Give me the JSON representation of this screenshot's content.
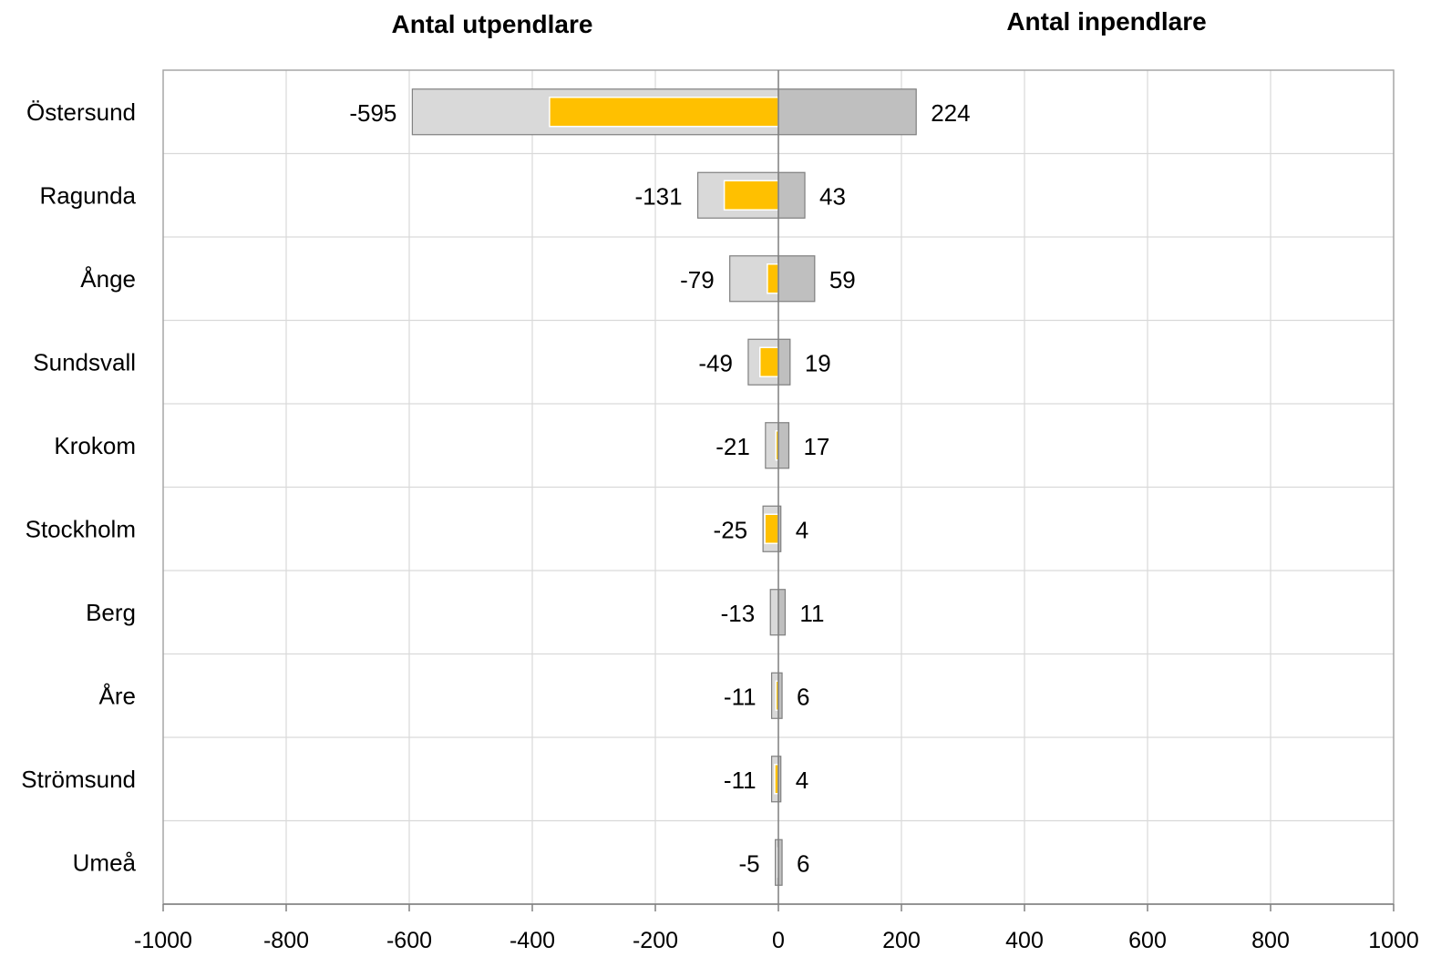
{
  "chart_data": {
    "type": "bar",
    "orientation": "horizontal",
    "headers": {
      "left": "Antal utpendlare",
      "right": "Antal inpendlare"
    },
    "categories": [
      "Östersund",
      "Ragunda",
      "Ånge",
      "Sundsvall",
      "Krokom",
      "Stockholm",
      "Berg",
      "Åre",
      "Strömsund",
      "Umeå"
    ],
    "series": [
      {
        "values": [
          -595,
          -131,
          -79,
          -49,
          -21,
          -25,
          -13,
          -11,
          -11,
          -5
        ],
        "color": "#d9d9d9",
        "labeled": true
      },
      {
        "values": [
          -372,
          -88,
          -18,
          -30,
          -4,
          -22,
          0,
          -4,
          -6,
          -1
        ],
        "color": "#ffc000",
        "labeled": false
      },
      {
        "values": [
          224,
          43,
          59,
          19,
          17,
          4,
          11,
          6,
          4,
          6
        ],
        "color": "#bfbfbf",
        "labeled": true
      }
    ],
    "xlim": [
      -1000,
      1000
    ],
    "xticks": [
      -1000,
      -800,
      -600,
      -400,
      -200,
      0,
      200,
      400,
      600,
      800,
      1000
    ],
    "xlabel": "",
    "ylabel": "",
    "grid": true
  }
}
